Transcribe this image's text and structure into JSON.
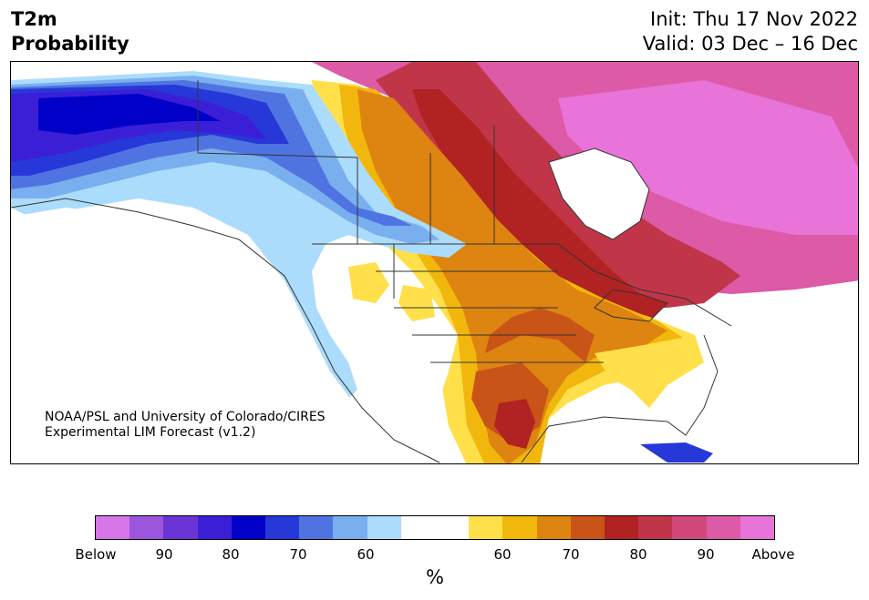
{
  "header": {
    "variable": "T2m",
    "subtitle": "Probability",
    "init": "Init: Thu 17 Nov 2022",
    "valid": "Valid: 03 Dec – 16 Dec"
  },
  "map": {
    "credit_line1": "NOAA/PSL and University of Colorado/CIRES",
    "credit_line2": "Experimental LIM Forecast (v1.2)",
    "region": "North America"
  },
  "legend": {
    "unit": "%",
    "below_colors": [
      "#d776e8",
      "#9c55dd",
      "#6a35d4",
      "#3b1fd6",
      "#0000c8",
      "#2638d8",
      "#4f74e2",
      "#79afef",
      "#acdcfb"
    ],
    "neutral_color": "#ffffff",
    "above_colors": [
      "#ffe04a",
      "#f2b70c",
      "#dd8411",
      "#c95417",
      "#b12222",
      "#c03648",
      "#d2487a",
      "#dc5aa6",
      "#e873d9"
    ],
    "tick_labels": [
      "Below",
      "90",
      "80",
      "70",
      "60",
      "60",
      "70",
      "80",
      "90",
      "Above"
    ]
  }
}
